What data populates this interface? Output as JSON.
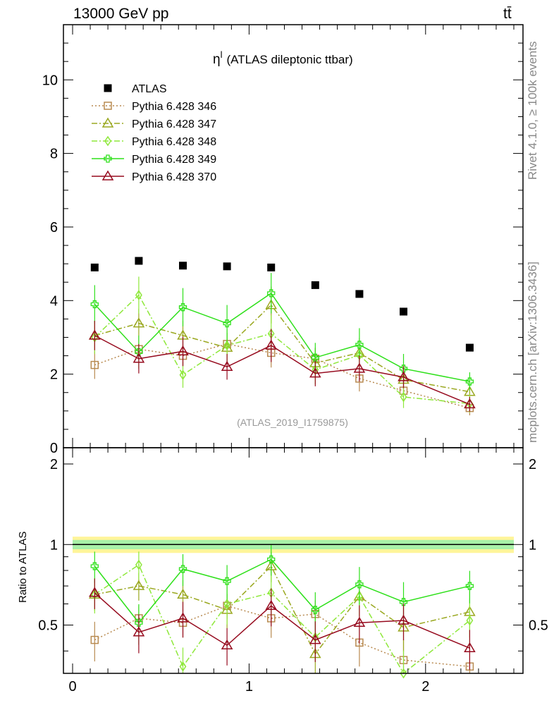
{
  "header": {
    "energy_label": "13000 GeV pp",
    "process_label": "tt̄"
  },
  "side_text": {
    "rivet": "Rivet 4.1.0, ≥ 100k events",
    "mcplots": "mcplots.cern.ch [arXiv:1306.3436]"
  },
  "chart_data": [
    {
      "type": "scatter",
      "panel": "main",
      "title_symbol": "η",
      "title_superscript": "l",
      "title": "(ATLAS dileptonic ttbar)",
      "watermark": "(ATLAS_2019_I1759875)",
      "xlabel": "",
      "ylabel": "",
      "xlim": [
        0,
        2.5
      ],
      "ylim": [
        0,
        11.5
      ],
      "x_ticks": [
        0,
        1,
        2
      ],
      "y_ticks": [
        0,
        2,
        4,
        6,
        8,
        10
      ],
      "x": [
        0.125,
        0.375,
        0.625,
        0.875,
        1.125,
        1.375,
        1.625,
        1.875,
        2.25
      ],
      "x_halfwidth": [
        0.125,
        0.125,
        0.125,
        0.125,
        0.125,
        0.125,
        0.125,
        0.125,
        0.25
      ],
      "legend_position": "top-left",
      "series": [
        {
          "name": "ATLAS",
          "color": "#000000",
          "marker": "filled-square",
          "line": "none",
          "values": [
            4.9,
            5.08,
            4.95,
            4.93,
            4.9,
            4.42,
            4.18,
            3.7,
            2.72
          ],
          "errors": [
            0,
            0,
            0,
            0,
            0,
            0,
            0,
            0,
            0
          ]
        },
        {
          "name": "Pythia 6.428 346",
          "color": "#b88a50",
          "marker": "open-square",
          "line": "dotted",
          "values": [
            2.25,
            2.68,
            2.5,
            2.82,
            2.58,
            2.42,
            1.88,
            1.55,
            1.08
          ],
          "errors": [
            0.38,
            0.3,
            0.3,
            0.3,
            0.4,
            0.3,
            0.35,
            0.3,
            0.2
          ]
        },
        {
          "name": "Pythia 6.428 347",
          "color": "#9aa820",
          "marker": "open-triangle",
          "line": "dashdot",
          "values": [
            3.05,
            3.38,
            3.05,
            2.72,
            3.88,
            2.3,
            2.58,
            1.85,
            1.52
          ],
          "errors": [
            0.4,
            0.4,
            0.4,
            0.4,
            0.5,
            0.4,
            0.4,
            0.35,
            0.3
          ]
        },
        {
          "name": "Pythia 6.428 348",
          "color": "#8ee83a",
          "marker": "open-diamond",
          "line": "dashdot",
          "values": [
            3.0,
            4.15,
            1.98,
            2.78,
            3.1,
            2.12,
            2.52,
            1.38,
            1.2
          ],
          "errors": [
            0.45,
            0.5,
            0.35,
            0.45,
            0.5,
            0.4,
            0.4,
            0.3,
            0.25
          ]
        },
        {
          "name": "Pythia 6.428 349",
          "color": "#2ee01a",
          "marker": "open-cross",
          "line": "solid",
          "values": [
            3.9,
            2.6,
            3.82,
            3.38,
            4.2,
            2.45,
            2.8,
            2.15,
            1.8
          ],
          "errors": [
            0.52,
            0.45,
            0.52,
            0.5,
            0.55,
            0.4,
            0.45,
            0.4,
            0.25
          ]
        },
        {
          "name": "Pythia 6.428 370",
          "color": "#960a1e",
          "marker": "open-triangle",
          "line": "solid",
          "values": [
            3.05,
            2.42,
            2.62,
            2.2,
            2.78,
            2.02,
            2.15,
            1.92,
            1.18
          ],
          "errors": [
            0.4,
            0.4,
            0.4,
            0.35,
            0.45,
            0.35,
            0.35,
            0.3,
            0.2
          ]
        }
      ]
    },
    {
      "type": "scatter",
      "panel": "ratio",
      "ylabel": "Ratio to ATLAS",
      "xlim": [
        0,
        2.5
      ],
      "ylim": [
        0.33,
        2.3
      ],
      "x_ticks": [
        0,
        1,
        2
      ],
      "y_ticks": [
        0.5,
        1,
        2
      ],
      "reference_band": {
        "inner": [
          0.96,
          1.04
        ],
        "outer": [
          0.93,
          1.07
        ]
      },
      "x": [
        0.125,
        0.375,
        0.625,
        0.875,
        1.125,
        1.375,
        1.625,
        1.875,
        2.25
      ],
      "series": [
        {
          "name": "Pythia 6.428 346",
          "values": [
            0.44,
            0.53,
            0.51,
            0.59,
            0.53,
            0.55,
            0.43,
            0.37,
            0.35
          ]
        },
        {
          "name": "Pythia 6.428 347",
          "values": [
            0.65,
            0.7,
            0.65,
            0.57,
            0.83,
            0.39,
            0.64,
            0.49,
            0.56
          ]
        },
        {
          "name": "Pythia 6.428 348",
          "values": [
            0.65,
            0.84,
            0.35,
            0.6,
            0.66,
            0.45,
            0.64,
            0.33,
            0.52
          ]
        },
        {
          "name": "Pythia 6.428 349",
          "values": [
            0.83,
            0.51,
            0.81,
            0.73,
            0.88,
            0.57,
            0.71,
            0.61,
            0.7
          ]
        },
        {
          "name": "Pythia 6.428 370",
          "values": [
            0.66,
            0.47,
            0.53,
            0.42,
            0.59,
            0.44,
            0.51,
            0.52,
            0.41
          ]
        }
      ]
    }
  ]
}
